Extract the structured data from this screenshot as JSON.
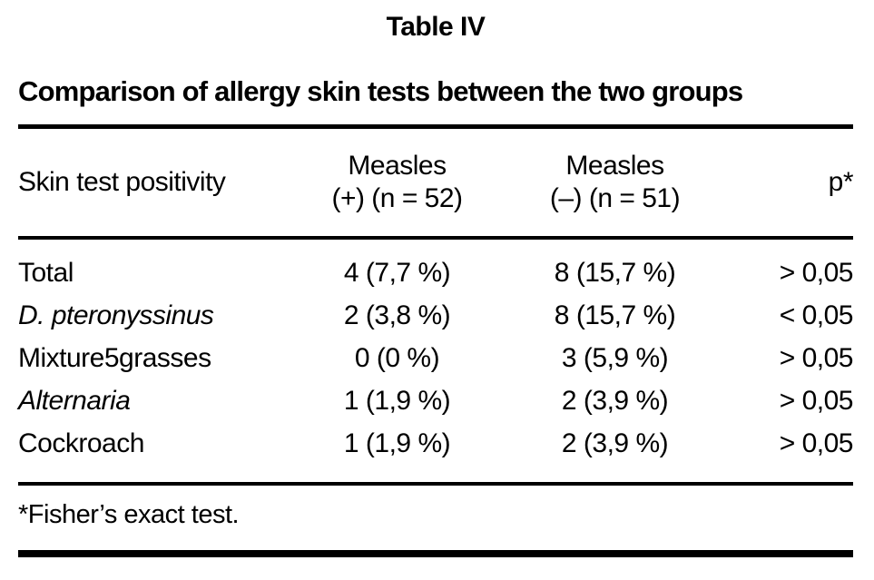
{
  "table": {
    "label": "Table IV",
    "title": "Comparison of allergy skin tests between the two groups",
    "header": {
      "skin_test": "Skin test positivity",
      "measles_pos_line1": "Measles",
      "measles_pos_line2": "(+) (n = 52)",
      "measles_neg_line1": "Measles",
      "measles_neg_line2": "(–) (n = 51)",
      "p": "p*"
    },
    "rows": [
      {
        "name": "Total",
        "measles_pos": "4 (7,7 %)",
        "measles_neg": "8 (15,7 %)",
        "p": "> 0,05"
      },
      {
        "name": "D. pteronyssinus",
        "measles_pos": "2 (3,8 %)",
        "measles_neg": "8 (15,7 %)",
        "p": "< 0,05"
      },
      {
        "name": "Mixture5grasses",
        "measles_pos": "0 (0 %)",
        "measles_neg": "3 (5,9 %)",
        "p": "> 0,05"
      },
      {
        "name": "Alternaria",
        "measles_pos": "1 (1,9 %)",
        "measles_neg": "2 (3,9 %)",
        "p": "> 0,05"
      },
      {
        "name": "Cockroach",
        "measles_pos": "1 (1,9 %)",
        "measles_neg": "2 (3,9 %)",
        "p": "> 0,05"
      }
    ],
    "footnote": "*Fisher’s exact test."
  }
}
